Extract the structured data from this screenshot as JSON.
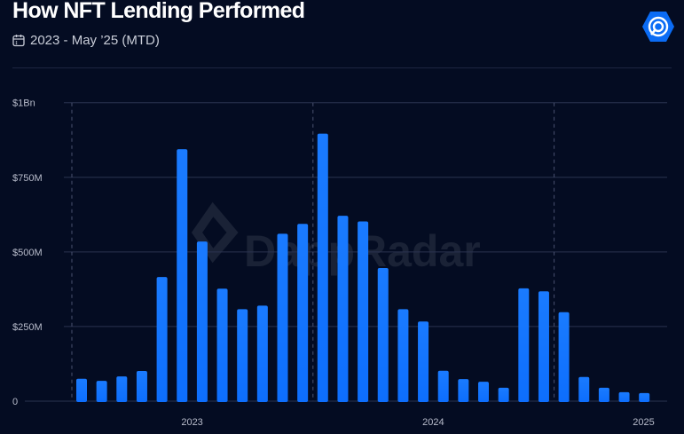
{
  "header": {
    "title": "How NFT Lending Performed",
    "subtitle": "2023 - May ’25 (MTD)",
    "subtitle_icon": "calendar-icon",
    "logo_icon": "dappradar-logo-icon",
    "watermark": "DappRadar"
  },
  "colors": {
    "background": "#040c22",
    "bar": "#0d6efd",
    "bar_top": "#1a7bff",
    "grid": "#2a3350"
  },
  "chart_data": {
    "type": "bar",
    "title": "How NFT Lending Performed",
    "xlabel": "",
    "ylabel": "",
    "ylim": [
      0,
      1000000000
    ],
    "grid": true,
    "y_ticks": [
      {
        "value": 0,
        "label": "0"
      },
      {
        "value": 250000000,
        "label": "$250M"
      },
      {
        "value": 500000000,
        "label": "$500M"
      },
      {
        "value": 750000000,
        "label": "$750M"
      },
      {
        "value": 1000000000,
        "label": "$1Bn"
      }
    ],
    "x_ticks": [
      {
        "label": "2023",
        "at_month": 6
      },
      {
        "label": "2024",
        "at_month": 18
      },
      {
        "label": "2025",
        "at_month": 29
      }
    ],
    "year_dividers_before_month": [
      0,
      12,
      24
    ],
    "categories": [
      "2023-01",
      "2023-02",
      "2023-03",
      "2023-04",
      "2023-05",
      "2023-06",
      "2023-07",
      "2023-08",
      "2023-09",
      "2023-10",
      "2023-11",
      "2023-12",
      "2024-01",
      "2024-02",
      "2024-03",
      "2024-04",
      "2024-05",
      "2024-06",
      "2024-07",
      "2024-08",
      "2024-09",
      "2024-10",
      "2024-11",
      "2024-12",
      "2025-01",
      "2025-02",
      "2025-03",
      "2025-04",
      "2025-05"
    ],
    "values": [
      75000000,
      68000000,
      83000000,
      101000000,
      416000000,
      844000000,
      535000000,
      377000000,
      308000000,
      320000000,
      561000000,
      594000000,
      896000000,
      621000000,
      602000000,
      446000000,
      308000000,
      267000000,
      102000000,
      74000000,
      65000000,
      45000000,
      378000000,
      368000000,
      298000000,
      81000000,
      45000000,
      30000000,
      27000000
    ]
  }
}
